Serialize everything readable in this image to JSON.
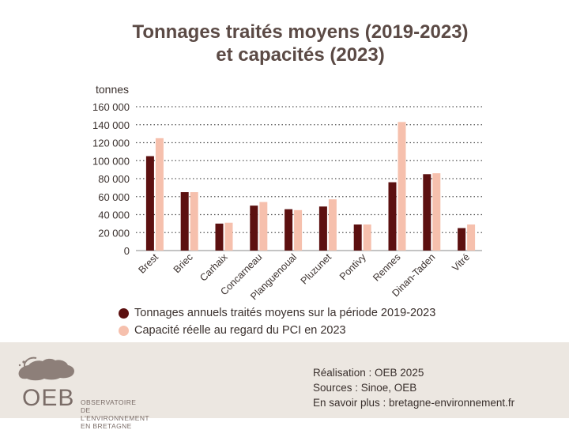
{
  "title_line1": "Tonnages traités moyens (2019-2023)",
  "title_line2": "et capacités (2023)",
  "chart_data": {
    "type": "bar",
    "title": "Tonnages traités moyens (2019-2023) et capacités (2023)",
    "ylabel": "tonnes",
    "xlabel": "",
    "ylim": [
      0,
      160000
    ],
    "yticks": [
      0,
      20000,
      40000,
      60000,
      80000,
      100000,
      120000,
      140000,
      160000
    ],
    "ytick_labels": [
      "0",
      "20 000",
      "40 000",
      "60 000",
      "80 000",
      "100 000",
      "120 000",
      "140 000",
      "160 000"
    ],
    "grid": "horizontal dotted",
    "legend_position": "bottom",
    "categories": [
      "Brest",
      "Briec",
      "Carhaix",
      "Concarneau",
      "Planguenoual",
      "Pluzunet",
      "Pontivy",
      "Rennes",
      "Dinan-Taden",
      "Vitré"
    ],
    "series": [
      {
        "name": "Tonnages annuels traités moyens sur la période 2019-2023",
        "color": "#5c1010",
        "values": [
          105000,
          65000,
          30000,
          50000,
          46000,
          49000,
          29000,
          76000,
          85000,
          25000
        ]
      },
      {
        "name": "Capacité réelle au regard du PCI en 2023",
        "color": "#f6c0ad",
        "values": [
          125000,
          65000,
          31000,
          54000,
          45000,
          57000,
          29000,
          143000,
          86000,
          29000
        ]
      }
    ]
  },
  "legend": [
    {
      "label": "Tonnages annuels traités moyens sur la période 2019-2023",
      "color": "#5c1010"
    },
    {
      "label": "Capacité réelle au regard du PCI en 2023",
      "color": "#f6c0ad"
    }
  ],
  "footer": {
    "logo_letters": "OEB",
    "logo_line1": "OBSERVATOIRE",
    "logo_line2": "DE L'ENVIRONNEMENT",
    "logo_line3": "EN BRETAGNE",
    "credit_realisation": "Réalisation : OEB 2025",
    "credit_sources": "Sources : Sinoe, OEB",
    "credit_more": "En savoir plus : bretagne-environnement.fr"
  }
}
